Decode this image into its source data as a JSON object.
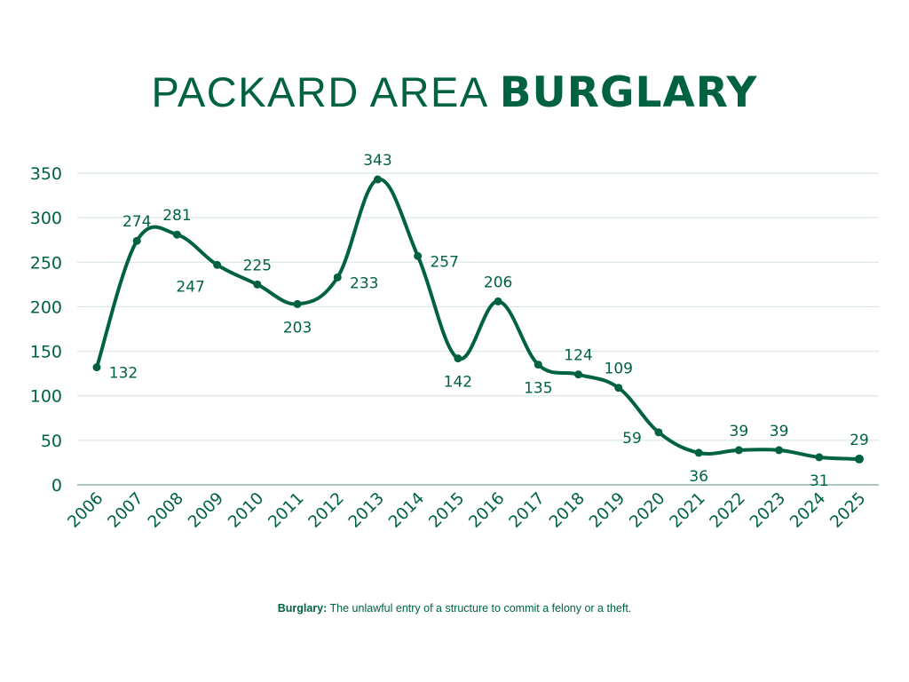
{
  "title": {
    "light": "PACKARD AREA ",
    "bold": "BURGLARY"
  },
  "footnote": {
    "term": "Burglary:",
    "definition": " The unlawful entry of a structure to commit a felony or a theft."
  },
  "colors": {
    "line": "#006241",
    "text": "#006241",
    "grid": "#dbe8e2",
    "axis": "#7aa895",
    "background": "#ffffff"
  },
  "chart_data": {
    "type": "line",
    "title": "PACKARD AREA BURGLARY",
    "xlabel": "",
    "ylabel": "",
    "x": [
      "2006",
      "2007",
      "2008",
      "2009",
      "2010",
      "2011",
      "2012",
      "2013",
      "2014",
      "2015",
      "2016",
      "2017",
      "2018",
      "2019",
      "2020",
      "2021",
      "2022",
      "2023",
      "2024",
      "2025"
    ],
    "series": [
      {
        "name": "Burglary",
        "values": [
          132,
          274,
          281,
          247,
          225,
          203,
          233,
          343,
          257,
          142,
          206,
          135,
          124,
          109,
          59,
          36,
          39,
          39,
          31,
          29
        ]
      }
    ],
    "ylim": [
      0,
      350
    ],
    "yticks": [
      0,
      50,
      100,
      150,
      200,
      250,
      300,
      350
    ],
    "grid": true,
    "legend": "none",
    "smooth": true,
    "data_labels": true,
    "label_positions": [
      "right",
      "top",
      "top",
      "bottom-left",
      "top",
      "bottom",
      "right",
      "top",
      "right",
      "bottom",
      "top",
      "bottom",
      "top",
      "top",
      "left",
      "bottom",
      "top",
      "top",
      "bottom",
      "top"
    ]
  }
}
